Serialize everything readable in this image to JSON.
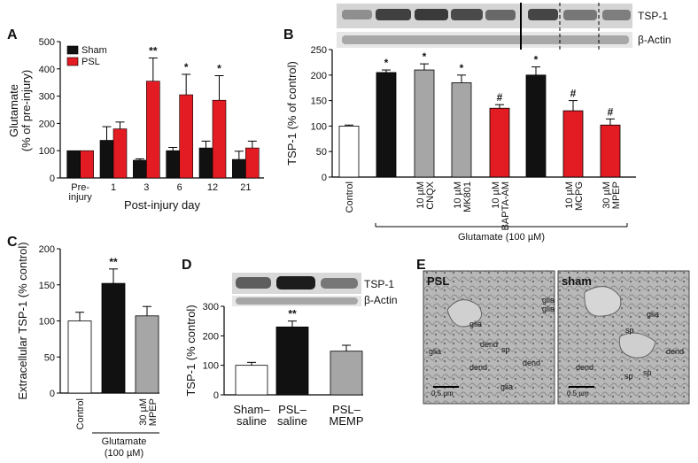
{
  "chart_data": [
    {
      "panel": "A",
      "type": "bar",
      "ylabel": "Glutamate\n(% of pre-injury)",
      "xlabel": "Post-injury day",
      "ylim": [
        0,
        500
      ],
      "yticks": [
        0,
        100,
        200,
        300,
        400,
        500
      ],
      "categories": [
        "Pre-\ninjury",
        "1",
        "3",
        "6",
        "12",
        "21"
      ],
      "series": [
        {
          "name": "Sham",
          "color": "#111111",
          "values": [
            100,
            138,
            65,
            100,
            110,
            68
          ],
          "errors": [
            0,
            50,
            5,
            12,
            25,
            30
          ]
        },
        {
          "name": "PSL",
          "color": "#e31b23",
          "values": [
            100,
            180,
            355,
            305,
            285,
            110
          ],
          "errors": [
            0,
            25,
            85,
            75,
            90,
            25
          ]
        }
      ],
      "annotations": [
        {
          "category": "3",
          "text": "**"
        },
        {
          "category": "6",
          "text": "*"
        },
        {
          "category": "12",
          "text": "*"
        }
      ]
    },
    {
      "panel": "B",
      "type": "bar",
      "ylabel": "TSP-1 (% of control)",
      "ylim": [
        0,
        250
      ],
      "yticks": [
        0,
        50,
        100,
        150,
        200,
        250
      ],
      "categories": [
        "Control",
        "",
        "10 µM\nCNQX",
        "10 µM\nMK801",
        "10 µM\nBAPTA-AM",
        "",
        "10 µM\nMCPG",
        "30 µM\nMPEP"
      ],
      "values": [
        100,
        205,
        210,
        185,
        135,
        200,
        130,
        102
      ],
      "errors": [
        2,
        5,
        12,
        15,
        7,
        16,
        20,
        12
      ],
      "colors": [
        "#ffffff",
        "#111111",
        "#a6a6a6",
        "#a6a6a6",
        "#e31b23",
        "#111111",
        "#e31b23",
        "#e31b23"
      ],
      "marks": [
        "",
        "*",
        "*",
        "*",
        "#",
        "*",
        "#",
        "#"
      ],
      "group_label": "Glutamate (100 µM)"
    },
    {
      "panel": "C",
      "type": "bar",
      "ylabel": "Extracellular TSP-1 (% control)",
      "ylim": [
        0,
        200
      ],
      "yticks": [
        0,
        50,
        100,
        150,
        200
      ],
      "categories": [
        "Control",
        "",
        "30 µM\nMPEP"
      ],
      "values": [
        100,
        152,
        107
      ],
      "errors": [
        12,
        20,
        13
      ],
      "colors": [
        "#ffffff",
        "#111111",
        "#a6a6a6"
      ],
      "marks": [
        "",
        "**",
        ""
      ],
      "group_label": "Glutamate\n(100 µM)"
    },
    {
      "panel": "D",
      "type": "bar",
      "ylabel": "TSP-1 (% control)",
      "ylim": [
        0,
        300
      ],
      "yticks": [
        0,
        100,
        200,
        300
      ],
      "categories": [
        "Sham–\nsaline",
        "PSL–\nsaline",
        "PSL–\nMEMP"
      ],
      "values": [
        100,
        230,
        148
      ],
      "errors": [
        10,
        20,
        20
      ],
      "colors": [
        "#ffffff",
        "#111111",
        "#a6a6a6"
      ],
      "marks": [
        "",
        "**",
        ""
      ]
    }
  ],
  "panels": {
    "a": "A",
    "b": "B",
    "c": "C",
    "d": "D",
    "e": "E"
  },
  "blot": {
    "tsp1": "TSP-1",
    "actin": "β-Actin"
  },
  "panel_e": {
    "left_title": "PSL",
    "right_title": "sham",
    "scale": "0.5 µm",
    "left_labels": [
      "glia",
      "glia",
      "glia",
      "glia",
      "glia",
      "dend",
      "dend",
      "dend",
      "sp"
    ],
    "right_labels": [
      "glia",
      "sp",
      "sp",
      "sp",
      "dend",
      "dend"
    ]
  }
}
